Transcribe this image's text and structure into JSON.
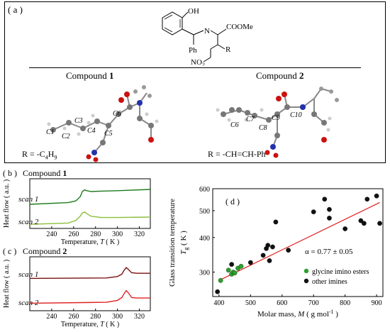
{
  "panel_a": {
    "label": "( a )",
    "structure": {
      "oh": "OH",
      "n": "N",
      "coome": "COOMe",
      "ph": "Ph",
      "r": "R",
      "no2": "NO",
      "no2_sub": "2"
    },
    "compound1": {
      "prefix": "Compound ",
      "num": "1",
      "r_label": "R = -C",
      "r_sub": "4",
      "r_sub2": "H",
      "r_sub3": "9",
      "atoms": [
        "C1",
        "C2",
        "C3",
        "C4",
        "C5",
        "C6"
      ]
    },
    "compound2": {
      "prefix": "Compound ",
      "num": "2",
      "r_label": "R = -CH=CH-Ph",
      "atoms": [
        "C6",
        "C7",
        "C8",
        "C9",
        "C10"
      ]
    }
  },
  "panel_b": {
    "label": "( b )",
    "title_prefix": "Compound ",
    "title_num": "1",
    "ylabel": "Heat flow  ( a.u. )",
    "xlabel": "Temperature, ",
    "xlabel_var": "T",
    "xlabel_unit": "  ( K )",
    "scan1": "scan 1",
    "scan2": "scan 2",
    "colors": {
      "scan1": "#1e7a1e",
      "scan2": "#8cbf3c"
    }
  },
  "panel_c": {
    "label": "( c )",
    "title_prefix": "Compound ",
    "title_num": "2",
    "ylabel": "Heat flow  ( a.u. )",
    "xlabel": "Temperature, ",
    "xlabel_var": "T",
    "xlabel_unit": "  ( K )",
    "scan1": "scan 1",
    "scan2": "scan 2",
    "colors": {
      "scan1": "#7a1010",
      "scan2": "#e02020"
    }
  },
  "panel_d": {
    "label": "( d )",
    "ylabel": "Glass transition temperature",
    "ylabel2": "T",
    "ylabel2_sub": "g",
    "ylabel2_unit": "  ( K )",
    "xlabel": "Molar mass, ",
    "xlabel_var": "M",
    "xlabel_unit": "  ( g mol",
    "xlabel_sup": "-1",
    "xlabel_end": " )",
    "alpha": "α = 0.77 ± 0.05",
    "legend": [
      "glycine imino esters",
      "other imines"
    ],
    "colors": {
      "glycine": "#2ca02c",
      "other": "#111111",
      "fit": "#e02020"
    }
  },
  "chart_data": [
    {
      "type": "line",
      "title": "Compound 1",
      "xlabel": "Temperature, T ( K )",
      "ylabel": "Heat flow ( a.u. )",
      "xlim": [
        220,
        330
      ],
      "xticks": [
        240,
        260,
        280,
        300,
        320
      ],
      "series": [
        {
          "name": "scan 1",
          "x": [
            220,
            255,
            262,
            266,
            268,
            270,
            272,
            276,
            285,
            300,
            330
          ],
          "y": [
            0.5,
            0.54,
            0.58,
            0.68,
            0.8,
            0.84,
            0.82,
            0.8,
            0.81,
            0.82,
            0.85
          ]
        },
        {
          "name": "scan 2",
          "x": [
            220,
            255,
            262,
            266,
            268,
            270,
            272,
            276,
            285,
            300,
            330
          ],
          "y": [
            0.03,
            0.06,
            0.12,
            0.22,
            0.3,
            0.32,
            0.28,
            0.22,
            0.19,
            0.19,
            0.2
          ]
        }
      ]
    },
    {
      "type": "line",
      "title": "Compound 2",
      "xlabel": "Temperature, T ( K )",
      "ylabel": "Heat flow ( a.u. )",
      "xlim": [
        220,
        330
      ],
      "xticks": [
        240,
        260,
        280,
        300,
        320
      ],
      "series": [
        {
          "name": "scan 1",
          "x": [
            220,
            290,
            300,
            304,
            306,
            308,
            310,
            313,
            318,
            330
          ],
          "y": [
            0.63,
            0.64,
            0.67,
            0.72,
            0.8,
            0.86,
            0.82,
            0.75,
            0.74,
            0.74
          ]
        },
        {
          "name": "scan 2",
          "x": [
            220,
            290,
            300,
            304,
            306,
            308,
            310,
            313,
            318,
            330
          ],
          "y": [
            0.1,
            0.12,
            0.16,
            0.22,
            0.3,
            0.37,
            0.32,
            0.22,
            0.21,
            0.21
          ]
        }
      ]
    },
    {
      "type": "scatter",
      "xlabel": "Molar mass, M ( g mol-1 )",
      "ylabel": "Glass transition temperature Tg ( K )",
      "xlim": [
        380,
        920
      ],
      "ylim": [
        245,
        600
      ],
      "xticks": [
        400,
        500,
        600,
        700,
        800,
        900
      ],
      "yticks": [
        300,
        400,
        500,
        600
      ],
      "log_scale": true,
      "series": [
        {
          "name": "glycine imino esters",
          "x": [
            405,
            430,
            440,
            445,
            450,
            460,
            470
          ],
          "y": [
            280,
            305,
            295,
            300,
            298,
            310,
            315
          ]
        },
        {
          "name": "other imines",
          "x": [
            395,
            440,
            500,
            540,
            550,
            555,
            560,
            570,
            580,
            620,
            700,
            735,
            750,
            750,
            800,
            850,
            860,
            870,
            900,
            910
          ],
          "y": [
            255,
            320,
            325,
            345,
            365,
            375,
            330,
            370,
            455,
            360,
            495,
            550,
            470,
            505,
            430,
            460,
            450,
            550,
            565,
            450
          ]
        }
      ],
      "fit_line": {
        "x": [
          400,
          910
        ],
        "y": [
          280,
          535
        ]
      }
    }
  ]
}
